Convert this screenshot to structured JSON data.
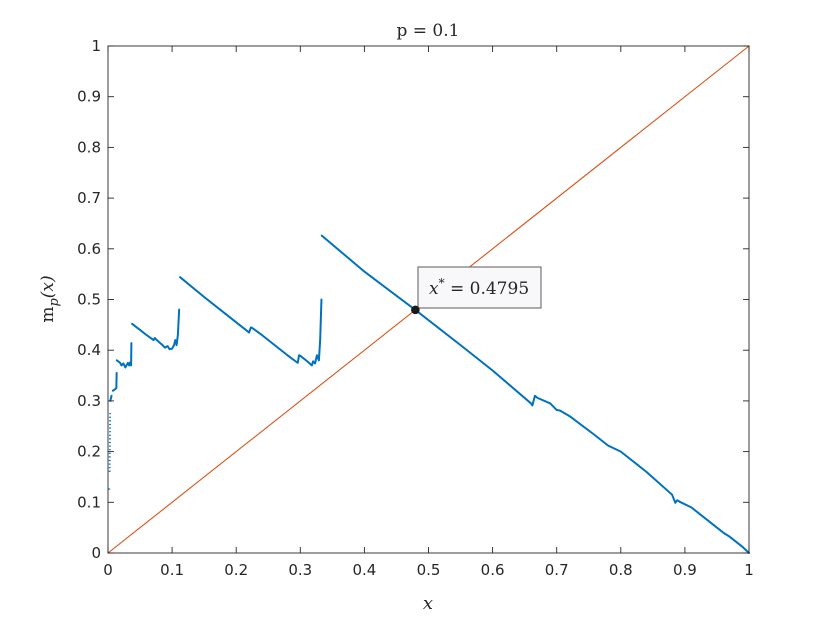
{
  "chart_data": {
    "type": "line",
    "title": "p = 0.1",
    "xlabel": "x",
    "ylabel": "m_p(x)",
    "ylabel_base": "m",
    "ylabel_sub": "p",
    "ylabel_arg": "(x)",
    "xlim": [
      0,
      1
    ],
    "ylim": [
      0,
      1
    ],
    "xticks": [
      0,
      0.1,
      0.2,
      0.3,
      0.4,
      0.5,
      0.6,
      0.7,
      0.8,
      0.9,
      1
    ],
    "xtick_labels": [
      "0",
      "0.1",
      "0.2",
      "0.3",
      "0.4",
      "0.5",
      "0.6",
      "0.7",
      "0.8",
      "0.9",
      "1"
    ],
    "yticks": [
      0,
      0.1,
      0.2,
      0.3,
      0.4,
      0.5,
      0.6,
      0.7,
      0.8,
      0.9,
      1
    ],
    "ytick_labels": [
      "0",
      "0.1",
      "0.2",
      "0.3",
      "0.4",
      "0.5",
      "0.6",
      "0.7",
      "0.8",
      "0.9",
      "1"
    ],
    "grid": false,
    "colors": {
      "map": "#0072BD",
      "identity": "#D95319",
      "axes": "#262626",
      "annotation_bg": "#F8F8FA"
    },
    "series": [
      {
        "style": "solid",
        "segments": [
          [
            [
              0.0036,
              0.3
            ],
            [
              0.0045,
              0.305
            ],
            [
              0.0055,
              0.31
            ]
          ],
          [
            [
              0.0075,
              0.32
            ],
            [
              0.01,
              0.322
            ],
            [
              0.013,
              0.325
            ],
            [
              0.0135,
              0.355
            ]
          ],
          [
            [
              0.0137,
              0.38
            ],
            [
              0.019,
              0.375
            ],
            [
              0.021,
              0.37
            ],
            [
              0.024,
              0.374
            ],
            [
              0.027,
              0.366
            ],
            [
              0.031,
              0.375
            ],
            [
              0.033,
              0.37
            ],
            [
              0.0345,
              0.376
            ],
            [
              0.036,
              0.37
            ],
            [
              0.0365,
              0.414
            ]
          ],
          [
            [
              0.0375,
              0.452
            ],
            [
              0.05,
              0.44
            ],
            [
              0.06,
              0.43
            ],
            [
              0.071,
              0.42
            ],
            [
              0.073,
              0.424
            ],
            [
              0.076,
              0.42
            ],
            [
              0.085,
              0.41
            ],
            [
              0.089,
              0.405
            ],
            [
              0.093,
              0.408
            ],
            [
              0.096,
              0.402
            ],
            [
              0.1,
              0.403
            ],
            [
              0.103,
              0.41
            ],
            [
              0.105,
              0.42
            ],
            [
              0.107,
              0.41
            ],
            [
              0.109,
              0.43
            ],
            [
              0.111,
              0.48
            ]
          ],
          [
            [
              0.1125,
              0.544
            ],
            [
              0.15,
              0.505
            ],
            [
              0.18,
              0.475
            ],
            [
              0.2,
              0.455
            ],
            [
              0.22,
              0.435
            ],
            [
              0.223,
              0.445
            ],
            [
              0.226,
              0.443
            ],
            [
              0.24,
              0.43
            ],
            [
              0.26,
              0.41
            ],
            [
              0.28,
              0.39
            ],
            [
              0.296,
              0.375
            ],
            [
              0.298,
              0.39
            ],
            [
              0.3,
              0.389
            ],
            [
              0.31,
              0.379
            ],
            [
              0.318,
              0.37
            ],
            [
              0.32,
              0.378
            ],
            [
              0.323,
              0.374
            ],
            [
              0.326,
              0.39
            ],
            [
              0.329,
              0.38
            ],
            [
              0.331,
              0.42
            ],
            [
              0.333,
              0.5
            ]
          ],
          [
            [
              0.3335,
              0.626
            ],
            [
              0.4,
              0.555
            ],
            [
              0.4795,
              0.4795
            ],
            [
              0.55,
              0.41
            ],
            [
              0.6,
              0.36
            ],
            [
              0.66,
              0.295
            ],
            [
              0.662,
              0.291
            ],
            [
              0.666,
              0.31
            ],
            [
              0.67,
              0.306
            ],
            [
              0.69,
              0.295
            ],
            [
              0.7,
              0.282
            ],
            [
              0.705,
              0.281
            ],
            [
              0.72,
              0.27
            ],
            [
              0.76,
              0.232
            ],
            [
              0.78,
              0.212
            ],
            [
              0.8,
              0.2
            ],
            [
              0.84,
              0.16
            ],
            [
              0.88,
              0.115
            ],
            [
              0.885,
              0.099
            ],
            [
              0.888,
              0.104
            ],
            [
              0.892,
              0.101
            ],
            [
              0.91,
              0.09
            ],
            [
              0.94,
              0.06
            ],
            [
              0.96,
              0.04
            ],
            [
              0.97,
              0.032
            ],
            [
              0.99,
              0.012
            ],
            [
              1.0,
              0.0
            ]
          ]
        ]
      },
      {
        "style": "dotted",
        "segments": [
          [
            [
              0.002,
              0.125
            ],
            [
              0.0021,
              0.13
            ]
          ],
          [
            [
              0.0026,
              0.16
            ],
            [
              0.003,
              0.22
            ],
            [
              0.0034,
              0.28
            ]
          ]
        ]
      },
      {
        "style": "solid",
        "segments": [
          [
            [
              0,
              0
            ],
            [
              1,
              1
            ]
          ]
        ]
      }
    ],
    "point": {
      "x": 0.4795,
      "y": 0.4795
    },
    "annotation": {
      "text": "x* = 0.4795",
      "lhs": "x",
      "sup": "*",
      "rhs": " = 0.4795"
    }
  }
}
